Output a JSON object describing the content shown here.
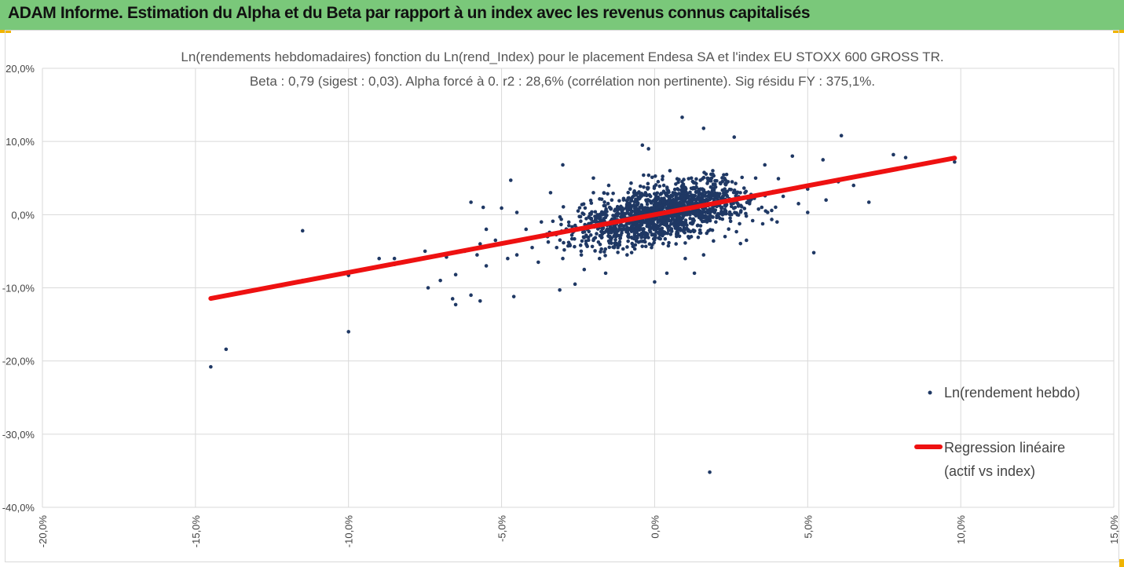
{
  "banner": {
    "title": "ADAM Informe. Estimation du Alpha et du Beta par rapport à un index avec les revenus connus capitalisés",
    "color": "#7ac87a",
    "corner_color": "#f0b400"
  },
  "chart_data": {
    "type": "scatter",
    "title": "Ln(rendements hebdomadaires) fonction du Ln(rend_Index) pour le placement Endesa SA et l'index EU STOXX 600 GROSS TR.",
    "subtitle": "Beta : 0,79 (sigest : 0,03). Alpha forcé à 0. r2 : 28,6% (corrélation non pertinente). Sig résidu FY : 375,1%.",
    "xlim": [
      -0.2,
      0.15
    ],
    "ylim": [
      -0.4,
      0.2
    ],
    "x_ticks": [
      -0.2,
      -0.15,
      -0.1,
      -0.05,
      0.0,
      0.05,
      0.1,
      0.15
    ],
    "y_ticks": [
      -0.4,
      -0.3,
      -0.2,
      -0.1,
      0.0,
      0.1,
      0.2
    ],
    "x_tick_labels": [
      "-20,0%",
      "-15,0%",
      "-10,0%",
      "-5,0%",
      "0,0%",
      "5,0%",
      "10,0%",
      "15,0%"
    ],
    "y_tick_labels": [
      "-40,0%",
      "-30,0%",
      "-20,0%",
      "-10,0%",
      "0,0%",
      "10,0%",
      "20,0%"
    ],
    "grid": "horizontal",
    "legend_position": "right",
    "series": [
      {
        "name": "Ln(rendement hebdo)",
        "kind": "scatter",
        "color": "#1f3864",
        "points": [
          [
            -0.145,
            -0.208
          ],
          [
            -0.14,
            -0.184
          ],
          [
            -0.14,
            -0.11
          ],
          [
            -0.115,
            -0.022
          ],
          [
            -0.115,
            -0.09
          ],
          [
            -0.1,
            -0.16
          ],
          [
            -0.1,
            -0.083
          ],
          [
            -0.09,
            -0.06
          ],
          [
            -0.085,
            -0.06
          ],
          [
            -0.085,
            -0.068
          ],
          [
            -0.075,
            -0.05
          ],
          [
            -0.074,
            -0.1
          ],
          [
            -0.07,
            -0.09
          ],
          [
            -0.068,
            -0.058
          ],
          [
            -0.066,
            -0.115
          ],
          [
            -0.065,
            -0.123
          ],
          [
            -0.065,
            -0.082
          ],
          [
            -0.062,
            -0.05
          ],
          [
            -0.06,
            -0.11
          ],
          [
            -0.06,
            0.017
          ],
          [
            -0.058,
            -0.055
          ],
          [
            -0.057,
            -0.118
          ],
          [
            -0.057,
            -0.04
          ],
          [
            -0.056,
            0.01
          ],
          [
            -0.055,
            -0.07
          ],
          [
            -0.055,
            -0.02
          ],
          [
            -0.052,
            -0.035
          ],
          [
            -0.05,
            0.009
          ],
          [
            -0.048,
            -0.06
          ],
          [
            -0.047,
            0.047
          ],
          [
            -0.046,
            -0.112
          ],
          [
            -0.045,
            -0.055
          ],
          [
            -0.045,
            0.003
          ],
          [
            -0.042,
            -0.02
          ],
          [
            -0.04,
            -0.045
          ],
          [
            -0.038,
            -0.065
          ],
          [
            -0.037,
            -0.01
          ],
          [
            -0.035,
            -0.03
          ],
          [
            -0.034,
            0.03
          ],
          [
            -0.032,
            -0.045
          ],
          [
            -0.031,
            -0.103
          ],
          [
            -0.03,
            -0.06
          ],
          [
            -0.03,
            0.068
          ],
          [
            -0.028,
            -0.015
          ],
          [
            -0.027,
            -0.033
          ],
          [
            -0.026,
            -0.095
          ],
          [
            -0.025,
            0.005
          ],
          [
            -0.024,
            -0.05
          ],
          [
            -0.023,
            -0.075
          ],
          [
            -0.022,
            -0.02
          ],
          [
            -0.02,
            -0.035
          ],
          [
            -0.02,
            0.05
          ],
          [
            -0.018,
            -0.01
          ],
          [
            -0.018,
            -0.06
          ],
          [
            -0.016,
            -0.08
          ],
          [
            -0.015,
            -0.025
          ],
          [
            -0.014,
            0.02
          ],
          [
            -0.012,
            -0.045
          ],
          [
            -0.012,
            0.01
          ],
          [
            -0.01,
            -0.02
          ],
          [
            -0.009,
            -0.055
          ],
          [
            -0.008,
            0.035
          ],
          [
            -0.007,
            -0.01
          ],
          [
            -0.006,
            -0.035
          ],
          [
            -0.005,
            0.005
          ],
          [
            -0.004,
            0.095
          ],
          [
            -0.004,
            -0.02
          ],
          [
            -0.003,
            0.03
          ],
          [
            -0.002,
            -0.01
          ],
          [
            -0.002,
            0.09
          ],
          [
            -0.001,
            -0.045
          ],
          [
            0.0,
            0.0
          ],
          [
            0.0,
            -0.092
          ],
          [
            0.001,
            0.015
          ],
          [
            0.002,
            -0.02
          ],
          [
            0.003,
            0.04
          ],
          [
            0.004,
            -0.08
          ],
          [
            0.005,
            0.005
          ],
          [
            0.006,
            0.03
          ],
          [
            0.007,
            -0.04
          ],
          [
            0.008,
            0.0
          ],
          [
            0.009,
            0.133
          ],
          [
            0.01,
            0.02
          ],
          [
            0.011,
            -0.03
          ],
          [
            0.012,
            0.05
          ],
          [
            0.013,
            0.01
          ],
          [
            0.014,
            -0.015
          ],
          [
            0.015,
            0.035
          ],
          [
            0.016,
            0.118
          ],
          [
            0.016,
            -0.055
          ],
          [
            0.017,
            0.02
          ],
          [
            0.018,
            0.004
          ],
          [
            0.019,
            0.06
          ],
          [
            0.02,
            -0.01
          ],
          [
            0.021,
            0.025
          ],
          [
            0.022,
            0.01
          ],
          [
            0.023,
            -0.03
          ],
          [
            0.024,
            0.045
          ],
          [
            0.025,
            0.015
          ],
          [
            0.026,
            0.106
          ],
          [
            0.027,
            0.0
          ],
          [
            0.028,
            0.03
          ],
          [
            0.03,
            -0.035
          ],
          [
            0.031,
            0.02
          ],
          [
            0.033,
            0.05
          ],
          [
            0.035,
            0.01
          ],
          [
            0.036,
            0.068
          ],
          [
            0.038,
            0.03
          ],
          [
            0.04,
            -0.01
          ],
          [
            0.042,
            0.025
          ],
          [
            0.045,
            0.08
          ],
          [
            0.047,
            0.015
          ],
          [
            0.05,
            0.035
          ],
          [
            0.05,
            0.003
          ],
          [
            0.052,
            -0.052
          ],
          [
            0.055,
            0.075
          ],
          [
            0.056,
            0.02
          ],
          [
            0.06,
            0.045
          ],
          [
            0.061,
            0.108
          ],
          [
            0.065,
            0.04
          ],
          [
            0.07,
            0.017
          ],
          [
            0.078,
            0.082
          ],
          [
            0.082,
            0.078
          ],
          [
            0.098,
            0.072
          ],
          [
            0.018,
            -0.352
          ],
          [
            0.013,
            -0.08
          ],
          [
            -0.02,
            0.03
          ],
          [
            0.005,
            0.06
          ],
          [
            0.01,
            -0.06
          ],
          [
            -0.015,
            0.04
          ]
        ]
      },
      {
        "name": "Regression linéaire (actif vs index)",
        "legend_lines": [
          "Regression linéaire",
          "(actif vs index)"
        ],
        "kind": "line",
        "color": "#ee1111",
        "slope": 0.79,
        "intercept": 0.0,
        "x_range": [
          -0.145,
          0.098
        ]
      }
    ]
  }
}
